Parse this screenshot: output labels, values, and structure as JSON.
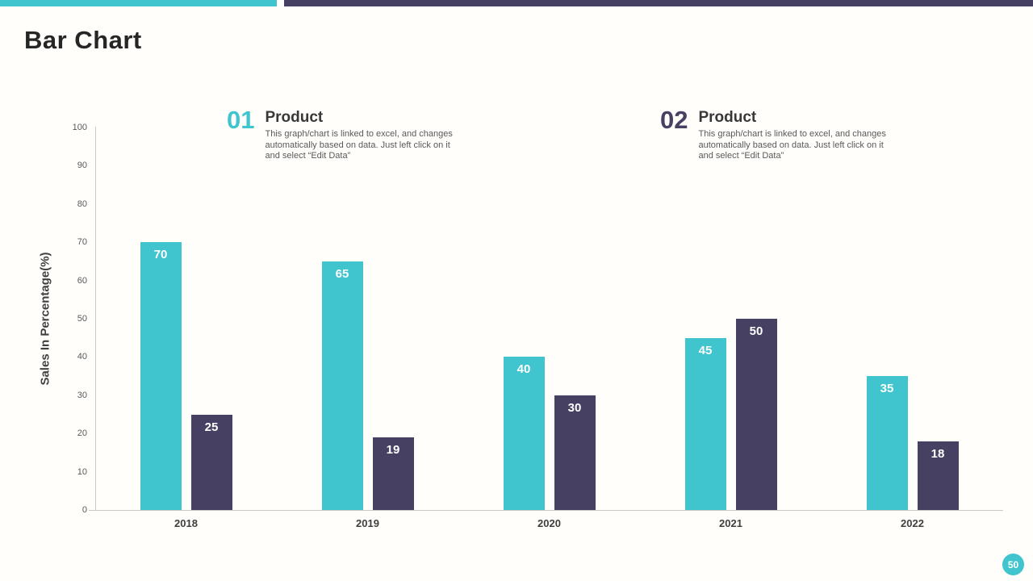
{
  "page": {
    "title": "Bar Chart",
    "page_number": "50",
    "accent_teal": "#40C4CE",
    "accent_navy": "#464063"
  },
  "callouts": [
    {
      "number": "01",
      "heading": "Product",
      "description": "This graph/chart is linked to excel, and changes automatically based on data. Just left click on it and select “Edit Data”"
    },
    {
      "number": "02",
      "heading": "Product",
      "description": "This graph/chart is linked to excel, and changes automatically based on data. Just left click on it and select “Edit Data”"
    }
  ],
  "chart_data": {
    "type": "bar",
    "categories": [
      "2018",
      "2019",
      "2020",
      "2021",
      "2022"
    ],
    "series": [
      {
        "name": "Product 01",
        "color": "#40C4CE",
        "values": [
          70,
          65,
          40,
          45,
          35
        ]
      },
      {
        "name": "Product 02",
        "color": "#464063",
        "values": [
          25,
          19,
          30,
          50,
          18
        ]
      }
    ],
    "title": "Bar Chart",
    "xlabel": "",
    "ylabel": "Sales In Percentage(%)",
    "ylim": [
      0,
      100
    ],
    "ytick_step": 10,
    "grid": false,
    "legend": "none",
    "data_labels": "inside-top-white-bold"
  }
}
